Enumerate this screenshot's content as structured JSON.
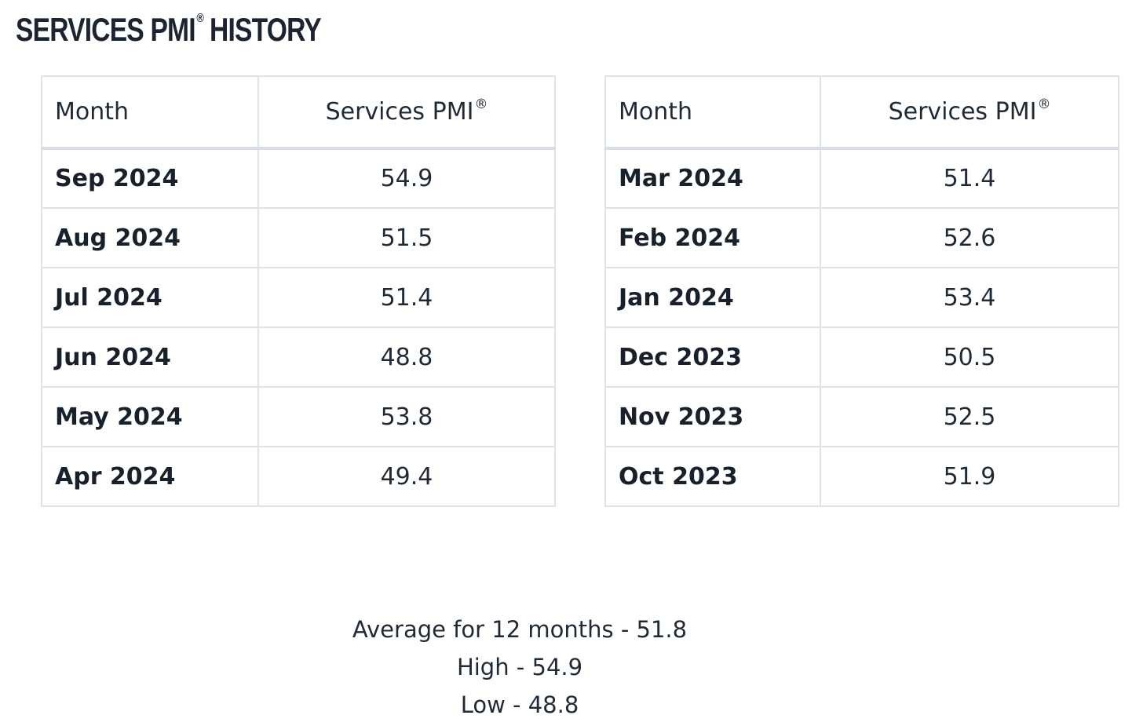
{
  "title": {
    "main": "SERVICES PMI",
    "reg_mark": "®",
    "suffix": "HISTORY"
  },
  "tables": [
    {
      "header_month": "Month",
      "header_value": "Services PMI",
      "header_reg": "®",
      "rows": [
        {
          "month": "Sep 2024",
          "value": "54.9"
        },
        {
          "month": "Aug 2024",
          "value": "51.5"
        },
        {
          "month": "Jul 2024",
          "value": "51.4"
        },
        {
          "month": "Jun 2024",
          "value": "48.8"
        },
        {
          "month": "May 2024",
          "value": "53.8"
        },
        {
          "month": "Apr 2024",
          "value": "49.4"
        }
      ]
    },
    {
      "header_month": "Month",
      "header_value": "Services PMI",
      "header_reg": "®",
      "rows": [
        {
          "month": "Mar 2024",
          "value": "51.4"
        },
        {
          "month": "Feb 2024",
          "value": "52.6"
        },
        {
          "month": "Jan 2024",
          "value": "53.4"
        },
        {
          "month": "Dec 2023",
          "value": "50.5"
        },
        {
          "month": "Nov 2023",
          "value": "52.5"
        },
        {
          "month": "Oct 2023",
          "value": "51.9"
        }
      ]
    }
  ],
  "summary": {
    "average": "Average for 12 months - 51.8",
    "high": "High - 54.9",
    "low": "Low - 48.8"
  }
}
